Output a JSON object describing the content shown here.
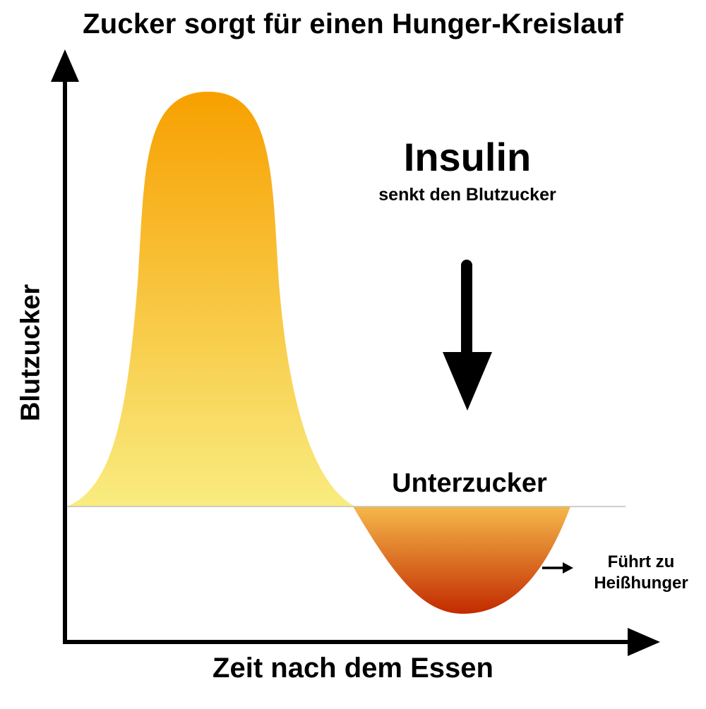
{
  "title": "Zucker sorgt für einen Hunger-Kreislauf",
  "axes": {
    "y_label": "Blutzucker",
    "x_label": "Zeit nach dem Essen"
  },
  "annotations": {
    "insulin_title": "Insulin",
    "insulin_subtitle": "senkt den Blutzucker",
    "low_label": "Unterzucker",
    "note_line1": "Führt zu",
    "note_line2": "Heißhunger"
  },
  "colors": {
    "peak_top": "#F7A000",
    "peak_bottom": "#F9EC80",
    "dip_top": "#F5B84A",
    "dip_bottom": "#C22A00",
    "baseline": "#BFBFBF",
    "axis": "#000000"
  }
}
